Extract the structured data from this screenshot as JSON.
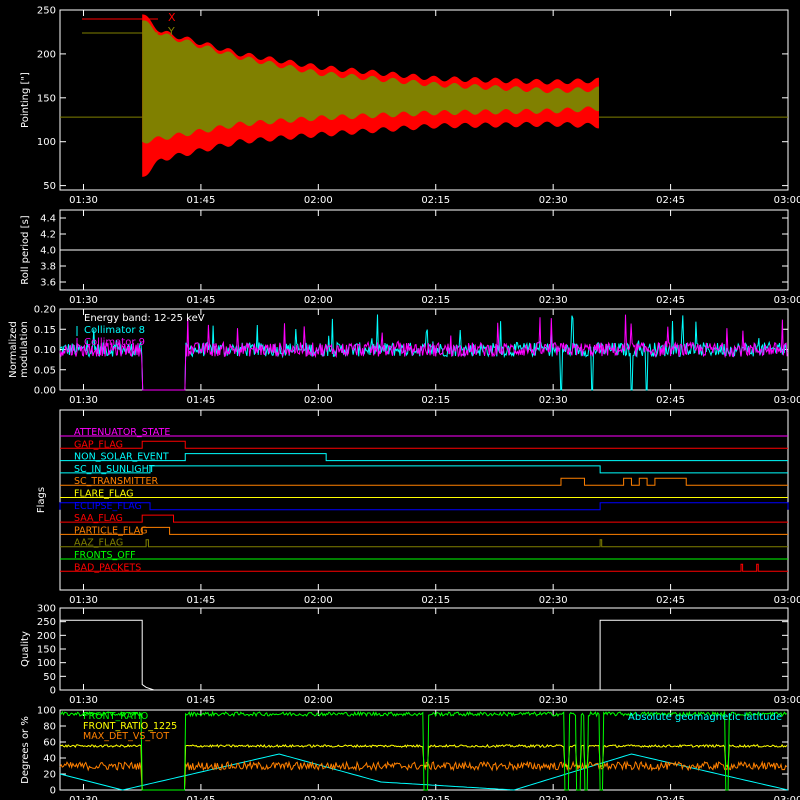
{
  "time_axis": {
    "ticks": [
      {
        "t": 90,
        "label": "01:30"
      },
      {
        "t": 105,
        "label": "01:45"
      },
      {
        "t": 120,
        "label": "02:00"
      },
      {
        "t": 135,
        "label": "02:15"
      },
      {
        "t": 150,
        "label": "02:30"
      },
      {
        "t": 165,
        "label": "02:45"
      },
      {
        "t": 180,
        "label": "03:00"
      }
    ]
  },
  "colors": {
    "axes": "#ffffff",
    "x_series": "#ff0000",
    "y_series": "#808000",
    "collimator": "#00ffff",
    "modulation_magenta": "#ff00ff",
    "front_ratio": "#00ff00",
    "front_ratio_1225": "#ffff00",
    "max_det": "#ff8000",
    "geomag": "#00ffff"
  },
  "chart_data": [
    {
      "type": "area",
      "ylabel": "Pointing [\"]",
      "ylim": [
        45,
        250
      ],
      "yticks": [
        50,
        100,
        150,
        200,
        250
      ],
      "legend_position": "top-left",
      "series": [
        {
          "name": "X",
          "envelope_lower": [
            [
              97.5,
              60
            ],
            [
              100,
              80
            ],
            [
              110,
              100
            ],
            [
              120,
              108
            ],
            [
              135,
              118
            ],
            [
              150,
              120
            ],
            [
              156,
              118
            ]
          ],
          "envelope_upper": [
            [
              97.5,
              245
            ],
            [
              100,
              225
            ],
            [
              110,
              200
            ],
            [
              120,
              185
            ],
            [
              135,
              172
            ],
            [
              150,
              168
            ],
            [
              156,
              170
            ]
          ]
        },
        {
          "name": "Y",
          "envelope_lower": [
            [
              97.5,
              100
            ],
            [
              110,
              120
            ],
            [
              120,
              127
            ],
            [
              135,
              133
            ],
            [
              150,
              135
            ],
            [
              156,
              138
            ]
          ],
          "envelope_upper": [
            [
              97.5,
              238
            ],
            [
              100,
              222
            ],
            [
              110,
              196
            ],
            [
              120,
              178
            ],
            [
              135,
              165
            ],
            [
              150,
              158
            ],
            [
              156,
              160
            ]
          ]
        }
      ],
      "baseline": 128
    },
    {
      "type": "line",
      "ylabel": "Roll period [s]",
      "ylim": [
        3.5,
        4.5
      ],
      "yticks": [
        3.6,
        3.8,
        4.0,
        4.2,
        4.4
      ],
      "yticklabels": [
        "3.6",
        "3.8",
        "4.0",
        "4.2",
        "4.4"
      ],
      "value": 4.0
    },
    {
      "type": "line",
      "ylabel": "Normalized modulation",
      "ylim": [
        0,
        0.2
      ],
      "yticks": [
        0,
        0.05,
        0.1,
        0.15,
        0.2
      ],
      "yticklabels": [
        "0.00",
        "0.05",
        "0.10",
        "0.15",
        "0.20"
      ],
      "annotation": "Energy band: 12-25 keV",
      "series": [
        {
          "name": "Collimator 8",
          "mean": 0.1,
          "gaps": [
            [
              97.5,
              103
            ]
          ],
          "dropouts": [
            151,
            155,
            160,
            162
          ]
        },
        {
          "name": "Collimator 9",
          "mean": 0.1,
          "gaps": [
            [
              97.5,
              103
            ]
          ],
          "dropouts": []
        }
      ]
    },
    {
      "type": "table",
      "ylabel": "Flags",
      "flags": [
        {
          "name": "ATTENUATOR_STATE",
          "color": "#ff00ff",
          "high": []
        },
        {
          "name": "GAP_FLAG",
          "color": "#ff0000",
          "high": [
            [
              97.5,
              103
            ]
          ]
        },
        {
          "name": "NON_SOLAR_EVENT",
          "color": "#00ffff",
          "high": [
            [
              103,
              121
            ]
          ]
        },
        {
          "name": "SC_IN_SUNLIGHT",
          "color": "#00ffff",
          "high": [
            [
              98.5,
              156
            ]
          ]
        },
        {
          "name": "SC_TRANSMITTER",
          "color": "#ff8000",
          "high": [
            [
              151,
              154
            ],
            [
              159,
              160
            ],
            [
              161,
              162
            ],
            [
              163,
              167
            ]
          ]
        },
        {
          "name": "FLARE_FLAG",
          "color": "#ffff00",
          "high": []
        },
        {
          "name": "ECLIPSE_FLAG",
          "color": "#0000ff",
          "high": [
            [
              87,
              98.5
            ],
            [
              156,
              180
            ]
          ]
        },
        {
          "name": "SAA_FLAG",
          "color": "#ff0000",
          "high": [
            [
              97.5,
              101.5
            ]
          ]
        },
        {
          "name": "PARTICLE_FLAG",
          "color": "#ff8000",
          "high": [
            [
              97.5,
              101
            ]
          ]
        },
        {
          "name": "AAZ_FLAG",
          "color": "#808000",
          "high": [
            [
              98,
              98.3
            ],
            [
              156,
              156.2
            ]
          ]
        },
        {
          "name": "FRONTS_OFF",
          "color": "#00ff00",
          "high": []
        },
        {
          "name": "BAD_PACKETS",
          "color": "#ff0000",
          "high": [
            [
              174,
              174.2
            ],
            [
              176,
              176.2
            ]
          ]
        }
      ]
    },
    {
      "type": "line",
      "ylabel": "Quality",
      "ylim": [
        0,
        300
      ],
      "yticks": [
        0,
        50,
        100,
        150,
        200,
        250,
        300
      ],
      "segments": [
        [
          [
            87,
            255
          ],
          [
            97.5,
            255
          ],
          [
            97.5,
            20
          ],
          [
            98,
            10
          ],
          [
            99,
            0
          ],
          [
            156,
            0
          ],
          [
            156,
            255
          ],
          [
            180,
            255
          ]
        ]
      ]
    },
    {
      "type": "line",
      "ylabel": "Degrees or %",
      "ylim": [
        0,
        100
      ],
      "yticks": [
        0,
        20,
        40,
        60,
        80,
        100
      ],
      "series": [
        {
          "name": "FRONT_RATIO",
          "color": "#00ff00",
          "level": 95
        },
        {
          "name": "FRONT_RATIO_1225",
          "color": "#ffff00",
          "level": 55
        },
        {
          "name": "MAX_DET_VS_TOT",
          "color": "#ff8000",
          "level": 30
        },
        {
          "name": "Absolute geomagnetic latitude",
          "color": "#00ffff",
          "peaks": [
            [
              87,
              20
            ],
            [
              95,
              0
            ],
            [
              115,
              45
            ],
            [
              128,
              10
            ],
            [
              145,
              0
            ],
            [
              160,
              45
            ],
            [
              180,
              0
            ]
          ]
        }
      ]
    }
  ]
}
